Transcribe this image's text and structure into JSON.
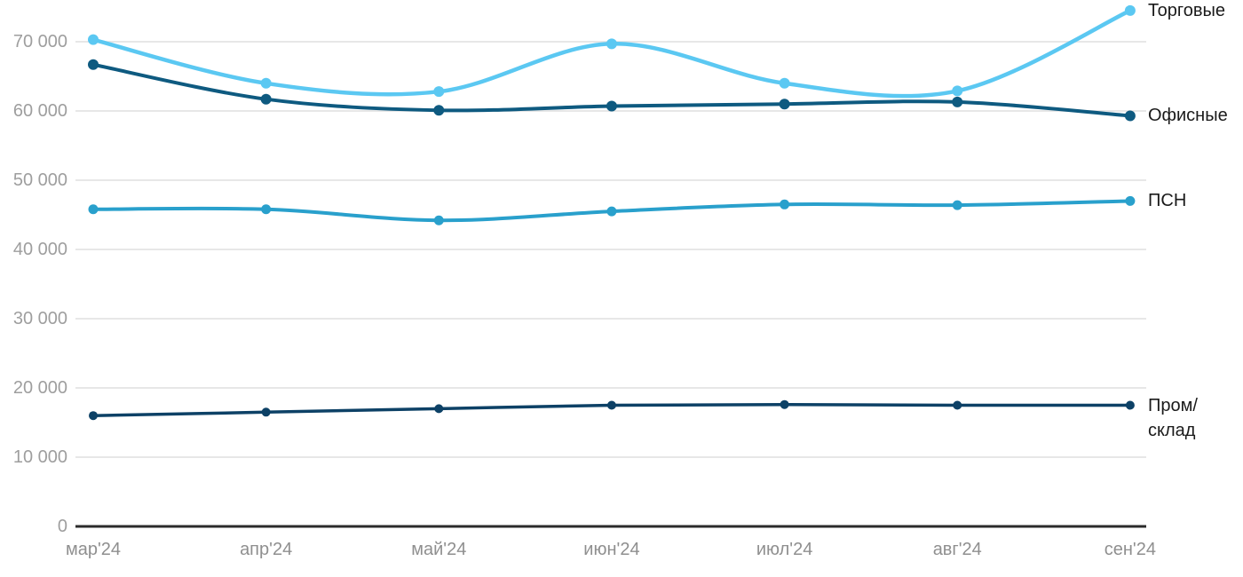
{
  "chart_data": {
    "type": "line",
    "title": "",
    "xlabel": "",
    "ylabel": "",
    "categories": [
      "мар'24",
      "апр'24",
      "май'24",
      "июн'24",
      "июл'24",
      "авг'24",
      "сен'24"
    ],
    "yticks": [
      {
        "value": 0,
        "label": "0"
      },
      {
        "value": 10000,
        "label": "10 000"
      },
      {
        "value": 20000,
        "label": "20 000"
      },
      {
        "value": 30000,
        "label": "30 000"
      },
      {
        "value": 40000,
        "label": "40 000"
      },
      {
        "value": 50000,
        "label": "50 000"
      },
      {
        "value": 60000,
        "label": "60 000"
      },
      {
        "value": 70000,
        "label": "70 000"
      }
    ],
    "ylim": [
      0,
      75500
    ],
    "grid": "horizontal",
    "legend_position": "right-end-of-line-labels",
    "series": [
      {
        "name": "Торговые",
        "label_lines": [
          "Торговые"
        ],
        "color": "#5BC8F2",
        "values": [
          70300,
          64000,
          62800,
          69700,
          64000,
          62900,
          74500
        ]
      },
      {
        "name": "Офисные",
        "label_lines": [
          "Офисные"
        ],
        "color": "#0E5A80",
        "values": [
          66700,
          61700,
          60100,
          60700,
          61000,
          61300,
          59300
        ]
      },
      {
        "name": "ПСН",
        "label_lines": [
          "ПСН"
        ],
        "color": "#29A0CC",
        "values": [
          45800,
          45800,
          44200,
          45500,
          46500,
          46400,
          47000
        ]
      },
      {
        "name": "Пром/склад",
        "label_lines": [
          "Пром/",
          "склад"
        ],
        "color": "#0D4166",
        "values": [
          16000,
          16500,
          17000,
          17500,
          17600,
          17500,
          17500
        ]
      }
    ]
  },
  "colors": {
    "background": "#FFFFFF",
    "gridline": "#E7E7E7",
    "axis_line": "#2B2B2B",
    "y_tick_text": "#9E9E9E",
    "x_tick_text": "#8F8F8F",
    "series_label_text": "#1A1A1A"
  }
}
